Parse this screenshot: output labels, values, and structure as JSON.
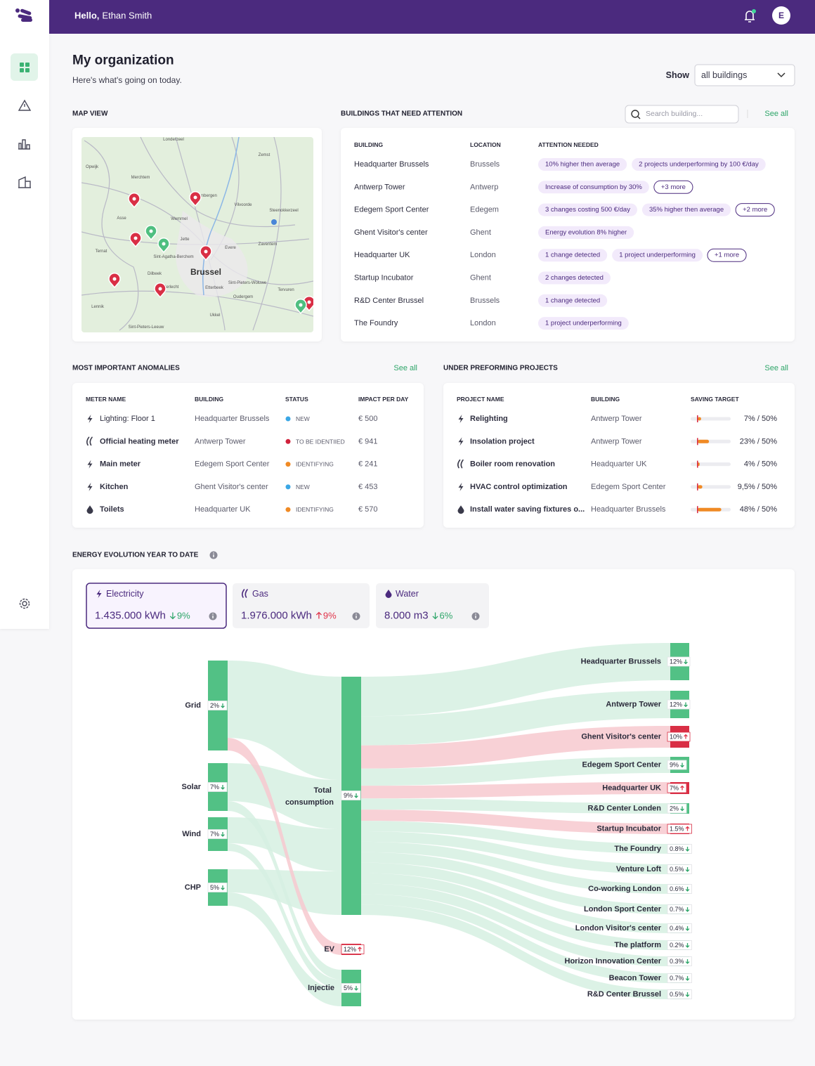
{
  "header": {
    "greeting": "Hello,",
    "user": "Ethan Smith",
    "avatar": "E"
  },
  "page": {
    "title": "My organization",
    "subtitle": "Here's what's going on today.",
    "show_label": "Show",
    "show_value": "all buildings"
  },
  "map": {
    "title": "MAP VIEW",
    "places": [
      "Londerzeel",
      "Zemst",
      "Opwijk",
      "Merchtem",
      "Grimbergen",
      "Vilvoorde",
      "Steenokkerzeel",
      "Asse",
      "Wemmel",
      "Jette",
      "Ternat",
      "Sint-Agatha-Berchem",
      "Evere",
      "Zaventem",
      "Brussel",
      "Dilbeek",
      "Anderlecht",
      "Etterbeek",
      "Sint-Pieters-Woluwe",
      "Oudergem",
      "Tervuren",
      "Lennik",
      "Ukkel",
      "Sint-Pieters-Leeuw"
    ]
  },
  "attention": {
    "title": "BUILDINGS THAT NEED ATTENTION",
    "search_placeholder": "Search building...",
    "see_all": "See all",
    "columns": [
      "BUILDING",
      "LOCATION",
      "ATTENTION NEEDED"
    ],
    "rows": [
      {
        "building": "Headquarter Brussels",
        "location": "Brussels",
        "tags": [
          "10% higher then average",
          "2 projects underperforming by 100 €/day"
        ]
      },
      {
        "building": "Antwerp Tower",
        "location": "Antwerp",
        "tags": [
          "Increase of consumption by 30%"
        ],
        "more": "+3 more"
      },
      {
        "building": "Edegem Sport Center",
        "location": "Edegem",
        "tags": [
          "3 changes costing 500 €/day",
          "35% higher then average"
        ],
        "more": "+2 more"
      },
      {
        "building": "Ghent Visitor's center",
        "location": "Ghent",
        "tags": [
          "Energy evolution 8% higher"
        ]
      },
      {
        "building": "Headquarter UK",
        "location": "London",
        "tags": [
          "1 change detected",
          "1 project underperforming"
        ],
        "more": "+1 more"
      },
      {
        "building": "Startup Incubator",
        "location": "Ghent",
        "tags": [
          "2 changes detected"
        ]
      },
      {
        "building": "R&D Center Brussel",
        "location": "Brussels",
        "tags": [
          "1 change detected"
        ]
      },
      {
        "building": "The Foundry",
        "location": "London",
        "tags": [
          "1 project underperforming"
        ]
      }
    ]
  },
  "anomalies": {
    "title": "MOST IMPORTANT ANOMALIES",
    "see_all": "See all",
    "columns": [
      "METER NAME",
      "BUILDING",
      "STATUS",
      "IMPACT PER DAY"
    ],
    "rows": [
      {
        "meter": "Lighting: Floor 1",
        "building": "Headquarter Brussels",
        "status": "NEW",
        "impact": "€ 500",
        "icon": "electricity",
        "status_color": "#3ba7e5"
      },
      {
        "meter": "Official heating meter",
        "building": "Antwerp Tower",
        "status": "TO BE IDENTIIED",
        "impact": "€ 941",
        "icon": "gas",
        "status_color": "#d0213b"
      },
      {
        "meter": "Main meter",
        "building": "Edegem Sport Center",
        "status": "IDENTIFYING",
        "impact": "€ 241",
        "icon": "electricity",
        "status_color": "#f08a24"
      },
      {
        "meter": "Kitchen",
        "building": "Ghent Visitor's center",
        "status": "NEW",
        "impact": "€ 453",
        "icon": "electricity",
        "status_color": "#3ba7e5"
      },
      {
        "meter": "Toilets",
        "building": "Headquarter UK",
        "status": "IDENTIFYING",
        "impact": "€ 570",
        "icon": "water",
        "status_color": "#f08a24"
      }
    ]
  },
  "projects": {
    "title": "UNDER PREFORMING PROJECTS",
    "see_all": "See all",
    "columns": [
      "PROJECT NAME",
      "BUILDING",
      "SAVING TARGET"
    ],
    "rows": [
      {
        "name": "Relighting",
        "building": "Antwerp Tower",
        "saving": 7,
        "target": 50,
        "label": "7% / 50%",
        "icon": "electricity"
      },
      {
        "name": "Insolation project",
        "building": "Antwerp Tower",
        "saving": 23,
        "target": 50,
        "label": "23% / 50%",
        "icon": "electricity"
      },
      {
        "name": "Boiler room renovation",
        "building": "Headquarter UK",
        "saving": 4,
        "target": 50,
        "label": "4% / 50%",
        "icon": "gas"
      },
      {
        "name": "HVAC control optimization",
        "building": "Edegem Sport Center",
        "saving": 9.5,
        "target": 50,
        "label": "9,5% / 50%",
        "icon": "electricity"
      },
      {
        "name": "Install water saving fixtures o...",
        "building": "Headquarter Brussels",
        "saving": 48,
        "target": 50,
        "label": "48% / 50%",
        "icon": "water"
      }
    ]
  },
  "energy": {
    "title": "ENERGY EVOLUTION YEAR TO DATE",
    "tabs": [
      {
        "name": "Electricity",
        "value": "1.435.000 kWh",
        "change": "9%",
        "trend": "down",
        "icon": "electricity",
        "selected": true
      },
      {
        "name": "Gas",
        "value": "1.976.000 kWh",
        "change": "9%",
        "trend": "up",
        "icon": "gas"
      },
      {
        "name": "Water",
        "value": "8.000 m3",
        "change": "6%",
        "trend": "down",
        "icon": "water"
      }
    ]
  },
  "sankey": {
    "sources": [
      {
        "label": "Grid",
        "pct": "2%",
        "trend": "down"
      },
      {
        "label": "Solar",
        "pct": "7%",
        "trend": "down"
      },
      {
        "label": "Wind",
        "pct": "7%",
        "trend": "down"
      },
      {
        "label": "CHP",
        "pct": "5%",
        "trend": "down"
      }
    ],
    "total": {
      "label_lines": [
        "Total",
        "consumption"
      ],
      "pct": "9%",
      "trend": "down"
    },
    "outputs": [
      {
        "label": "EV",
        "pct": "12%",
        "trend": "up"
      },
      {
        "label": "Injectie",
        "pct": "5%",
        "trend": "down"
      }
    ],
    "buildings": [
      {
        "label": "Headquarter Brussels",
        "pct": "12%",
        "trend": "down"
      },
      {
        "label": "Antwerp Tower",
        "pct": "12%",
        "trend": "down"
      },
      {
        "label": "Ghent Visitor's center",
        "pct": "10%",
        "trend": "up"
      },
      {
        "label": "Edegem Sport Center",
        "pct": "9%",
        "trend": "down"
      },
      {
        "label": "Headquarter UK",
        "pct": "7%",
        "trend": "up"
      },
      {
        "label": "R&D Center Londen",
        "pct": "2%",
        "trend": "down"
      },
      {
        "label": "Startup Incubator",
        "pct": "1.5%",
        "trend": "up"
      },
      {
        "label": "The Foundry",
        "pct": "0.8%",
        "trend": "down"
      },
      {
        "label": "Venture Loft",
        "pct": "0.5%",
        "trend": "down"
      },
      {
        "label": "Co-working London",
        "pct": "0.6%",
        "trend": "down"
      },
      {
        "label": "London Sport Center",
        "pct": "0.7%",
        "trend": "down"
      },
      {
        "label": "London Visitor's center",
        "pct": "0.4%",
        "trend": "down"
      },
      {
        "label": "The platform",
        "pct": "0.2%",
        "trend": "down"
      },
      {
        "label": "Horizon Innovation Center",
        "pct": "0.3%",
        "trend": "down"
      },
      {
        "label": "Beacon Tower",
        "pct": "0.7%",
        "trend": "down"
      },
      {
        "label": "R&D Center Brussel",
        "pct": "0.5%",
        "trend": "down"
      }
    ]
  }
}
